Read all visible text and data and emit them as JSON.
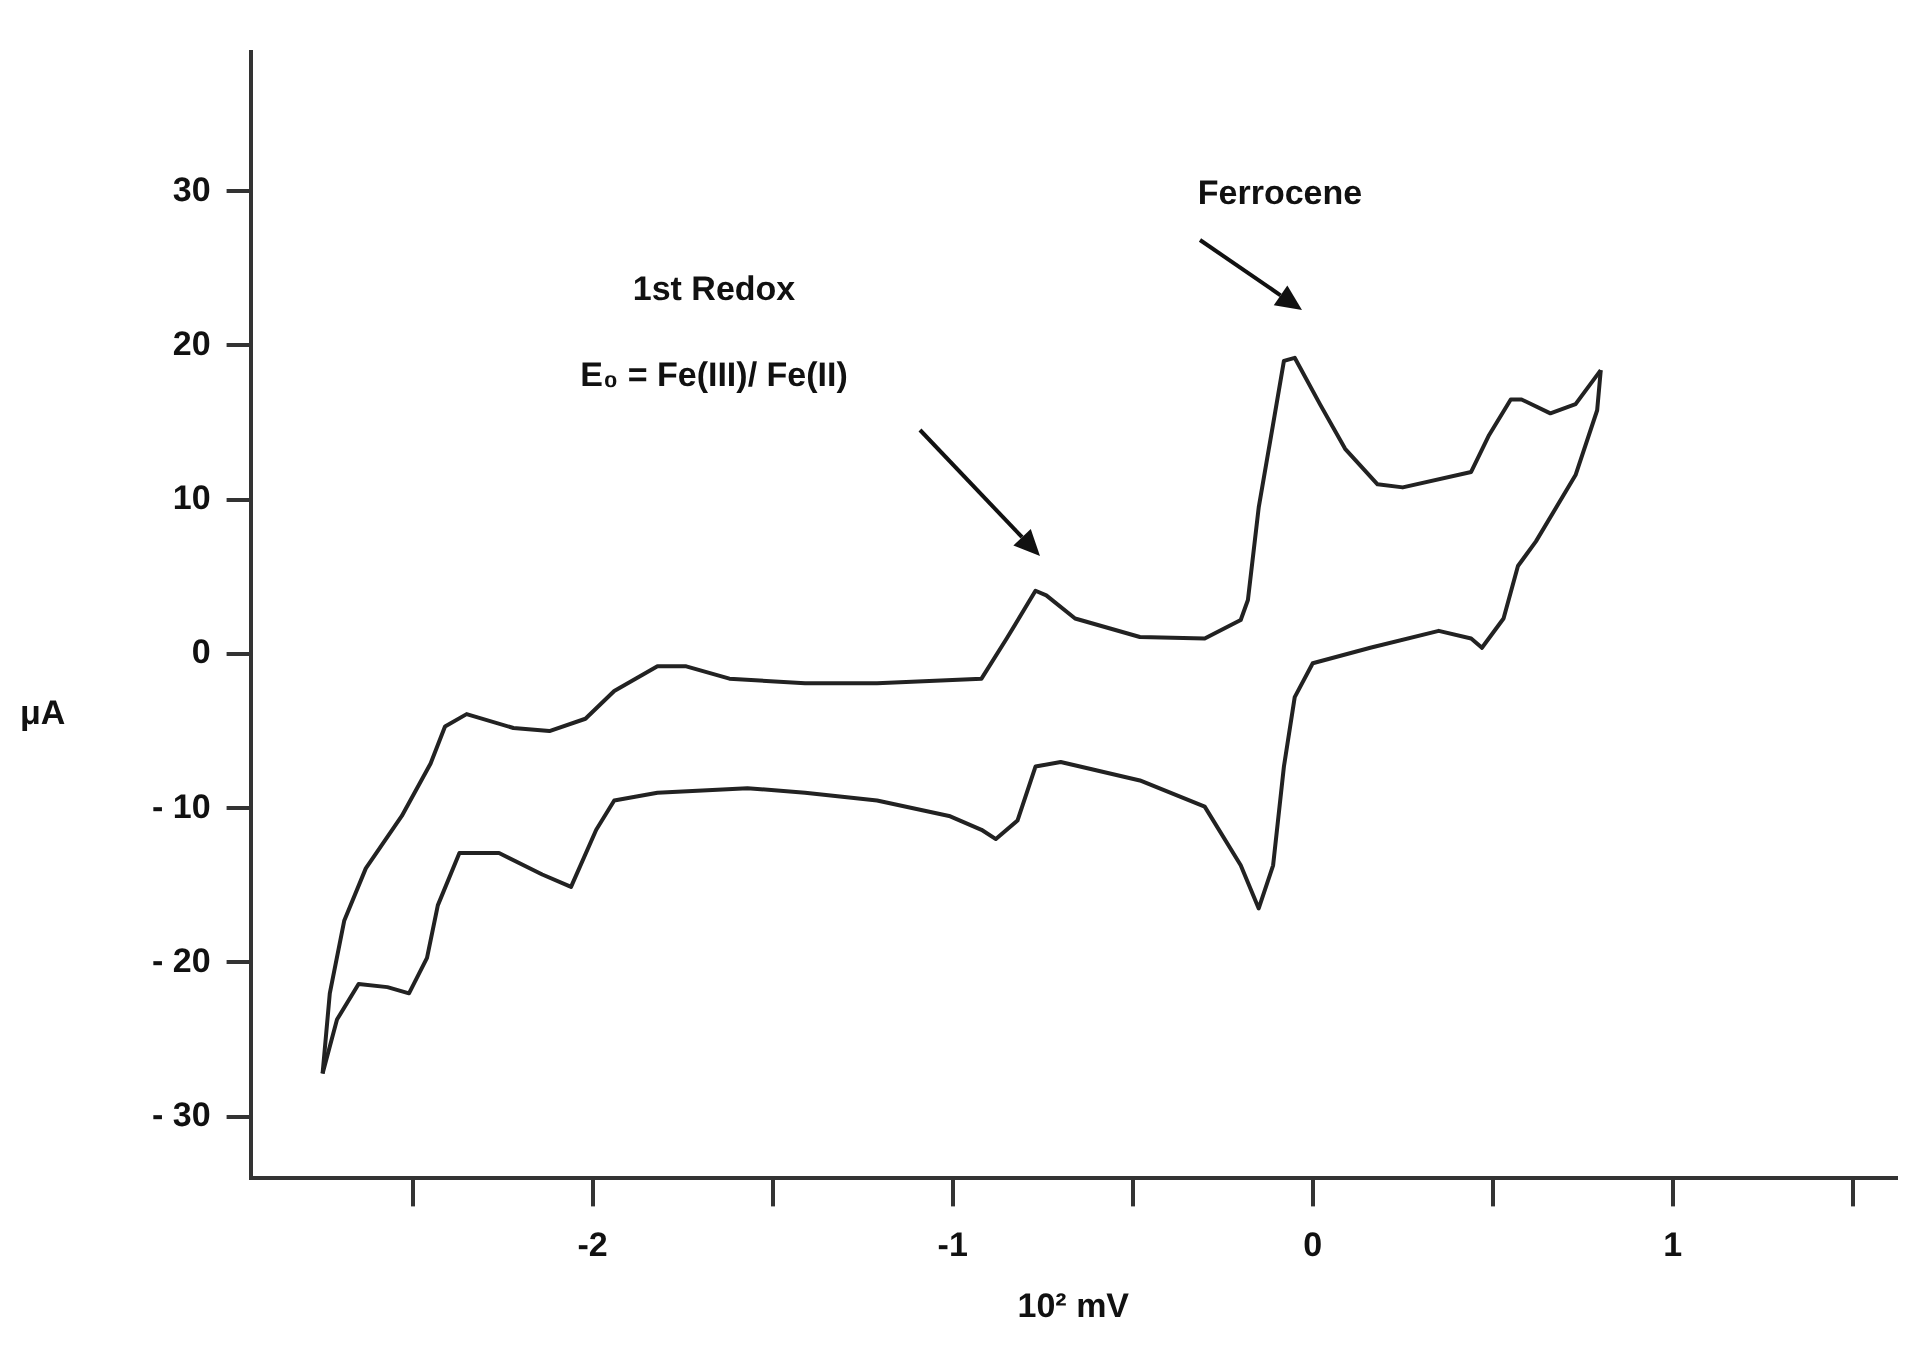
{
  "chart_data": {
    "type": "line",
    "xlabel": "10² mV",
    "ylabel": "μA",
    "xlim": [
      -2.95,
      1.62
    ],
    "ylim": [
      -34,
      39
    ],
    "xticks": [
      {
        "value": -2.5,
        "label": null
      },
      -2,
      {
        "value": -1.5,
        "label": null
      },
      -1,
      {
        "value": -0.5,
        "label": null
      },
      0,
      {
        "value": 0.5,
        "label": null
      },
      1,
      {
        "value": 1.5,
        "label": null
      }
    ],
    "yticks": [
      {
        "value": -30,
        "label": "- 30"
      },
      {
        "value": -20,
        "label": "- 20"
      },
      {
        "value": -10,
        "label": "- 10"
      },
      0,
      10,
      20,
      30
    ],
    "grid": false,
    "legend": false,
    "marker": "none",
    "line_style": "solid",
    "series": [
      {
        "color": "#222222",
        "x": [
          -2.75,
          -2.73,
          -2.69,
          -2.63,
          -2.53,
          -2.45,
          -2.41,
          -2.35,
          -2.22,
          -2.12,
          -2.02,
          -1.94,
          -1.82,
          -1.74,
          -1.62,
          -1.41,
          -1.21,
          -0.92,
          -0.85,
          -0.77,
          -0.74,
          -0.66,
          -0.48,
          -0.3,
          -0.2,
          -0.18,
          -0.15,
          -0.11,
          -0.08,
          -0.05,
          0.02,
          0.09,
          0.18,
          0.25,
          0.44,
          0.49,
          0.55,
          0.58,
          0.66,
          0.73,
          0.8
        ],
        "values": [
          -27.2,
          -22,
          -17.3,
          -13.9,
          -10.5,
          -7.1,
          -4.7,
          -3.9,
          -4.8,
          -5,
          -4.2,
          -2.4,
          -0.8,
          -0.8,
          -1.6,
          -1.9,
          -1.9,
          -1.6,
          1,
          4.1,
          3.8,
          2.3,
          1.1,
          1,
          2.2,
          3.5,
          9.5,
          14.9,
          19,
          19.2,
          16.2,
          13.3,
          11,
          10.8,
          11.8,
          14.2,
          16.5,
          16.5,
          15.6,
          16.2,
          18.4
        ]
      },
      {
        "color": "#222222",
        "x": [
          0.8,
          0.79,
          0.73,
          0.62,
          0.57,
          0.53,
          0.47,
          0.44,
          0.35,
          0.16,
          0.0,
          -0.05,
          -0.08,
          -0.11,
          -0.15,
          -0.2,
          -0.3,
          -0.48,
          -0.7,
          -0.77,
          -0.82,
          -0.88,
          -0.92,
          -1.01,
          -1.21,
          -1.41,
          -1.57,
          -1.82,
          -1.94,
          -1.99,
          -2.06,
          -2.14,
          -2.26,
          -2.37,
          -2.43,
          -2.46,
          -2.51,
          -2.57,
          -2.65,
          -2.71,
          -2.75
        ],
        "values": [
          18.4,
          15.8,
          11.6,
          7.3,
          5.7,
          2.3,
          0.4,
          1,
          1.5,
          0.4,
          -0.6,
          -2.8,
          -7.3,
          -13.7,
          -16.5,
          -13.7,
          -9.9,
          -8.2,
          -7,
          -7.3,
          -10.8,
          -12,
          -11.4,
          -10.5,
          -9.5,
          -9,
          -8.7,
          -9,
          -9.5,
          -11.4,
          -15.1,
          -14.3,
          -12.9,
          -12.9,
          -16.3,
          -19.7,
          -22,
          -21.6,
          -21.4,
          -23.7,
          -27.2
        ]
      }
    ],
    "annotations": [
      "1st Redox",
      "E₀ = Fe(III)/ Fe(II)",
      "Ferrocene"
    ]
  }
}
